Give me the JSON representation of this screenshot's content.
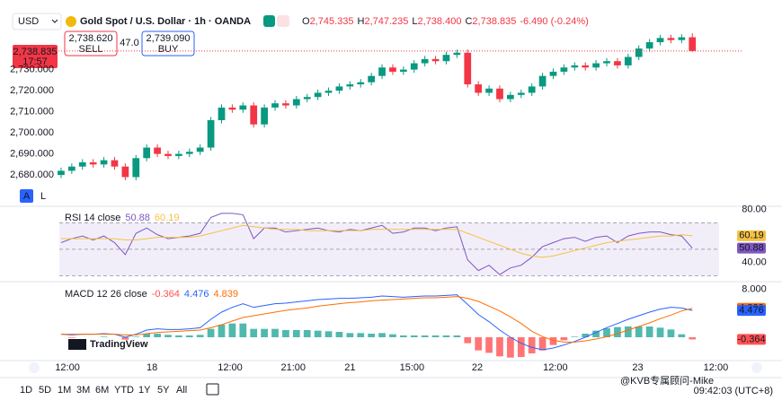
{
  "header": {
    "currency": "USD",
    "symbol": "Gold Spot / U.S. Dollar · 1h · OANDA",
    "ohlc": [
      {
        "key": "O",
        "value": "2,745.335"
      },
      {
        "key": "H",
        "value": "2,747.235"
      },
      {
        "key": "L",
        "value": "2,738.400"
      },
      {
        "key": "C",
        "value": "2,738.835"
      }
    ],
    "change": "-6.490 (-0.24%)"
  },
  "trade": {
    "sell_price": "2,738.620",
    "sell": "SELL",
    "spread": "47.0",
    "buy_price": "2,739.090",
    "buy": "BUY"
  },
  "price_tag": {
    "price": "2,738.835",
    "time": "17:57"
  },
  "scale_buttons": [
    "A",
    "L"
  ],
  "logo": "TradingView",
  "toolbar": {
    "ranges": [
      "1D",
      "5D",
      "1M",
      "3M",
      "6M",
      "YTD",
      "1Y",
      "5Y",
      "All"
    ],
    "time": "09:42:03 (UTC+8)",
    "watermark": "@KVB专属顾问-Mike"
  },
  "chart_data": [
    {
      "type": "candlestick",
      "up_color": "#089981",
      "down_color": "#f23645",
      "xlim": [
        -0.5,
        61.5
      ],
      "xticks": [
        {
          "value": 0.6,
          "label": "12:00"
        },
        {
          "value": 8.5,
          "label": "18"
        },
        {
          "value": 15.8,
          "label": "12:00"
        },
        {
          "value": 21.7,
          "label": "21:00"
        },
        {
          "value": 27,
          "label": "21"
        },
        {
          "value": 32.8,
          "label": "15:00"
        },
        {
          "value": 38.9,
          "label": "22"
        },
        {
          "value": 46.2,
          "label": "12:00"
        },
        {
          "value": 53.9,
          "label": "23"
        },
        {
          "value": 61.2,
          "label": "12:00"
        }
      ],
      "ylim": [
        2666,
        2746
      ],
      "yticks": [
        {
          "value": 2680,
          "label": "2,680.000"
        },
        {
          "value": 2690,
          "label": "2,690.000"
        },
        {
          "value": 2700,
          "label": "2,700.000"
        },
        {
          "value": 2710,
          "label": "2,710.000"
        },
        {
          "value": 2720,
          "label": "2,720.000"
        },
        {
          "value": 2730,
          "label": "2,730.000"
        }
      ],
      "open": [
        2680,
        2682,
        2684,
        2686,
        2685,
        2687,
        2684,
        2679,
        2688,
        2693,
        2690,
        2689,
        2690,
        2691,
        2693,
        2706,
        2712,
        2711,
        2713,
        2704,
        2712,
        2714,
        2713,
        2716,
        2717,
        2719,
        2720,
        2722,
        2723,
        2724,
        2727,
        2731,
        2729,
        2730,
        2733,
        2735,
        2734,
        2737,
        2738,
        2723,
        2719,
        2721,
        2716,
        2718,
        2719,
        2722,
        2727,
        2729,
        2731,
        2732,
        2731,
        2733,
        2734,
        2732,
        2736,
        2740,
        2743,
        2745,
        2744,
        2745.335
      ],
      "high": [
        2683.5,
        2685.5,
        2687.5,
        2687.5,
        2688.5,
        2688.5,
        2685.5,
        2689.5,
        2694.5,
        2694.5,
        2691.5,
        2691.5,
        2692.5,
        2694.5,
        2707.5,
        2713.5,
        2713.5,
        2714.5,
        2714.5,
        2713.5,
        2715.5,
        2715.5,
        2717.5,
        2718.5,
        2720.5,
        2721.5,
        2723.5,
        2724.5,
        2725.5,
        2728.5,
        2732.5,
        2732.5,
        2731.5,
        2734.5,
        2736.5,
        2736.5,
        2738.5,
        2739.5,
        2739.5,
        2724.5,
        2722.5,
        2722.5,
        2719.5,
        2720.5,
        2723.5,
        2728.5,
        2730.5,
        2732.5,
        2733.5,
        2733.5,
        2734.5,
        2735.5,
        2735.5,
        2737.5,
        2741.5,
        2744.5,
        2746.5,
        2746.5,
        2746.8,
        2747.235
      ],
      "low": [
        2678.5,
        2680.5,
        2682.5,
        2683.5,
        2683.5,
        2682.5,
        2677.5,
        2677.5,
        2686.5,
        2688.5,
        2687.5,
        2687.5,
        2688.5,
        2689.5,
        2691.5,
        2704.5,
        2709.5,
        2709.5,
        2702.5,
        2702.5,
        2710.5,
        2711.5,
        2711.5,
        2714.5,
        2715.5,
        2717.5,
        2718.5,
        2720.5,
        2721.5,
        2722.5,
        2725.5,
        2727.5,
        2727.5,
        2728.5,
        2731.5,
        2732.5,
        2732.5,
        2735.5,
        2721.5,
        2717.5,
        2717.5,
        2714.5,
        2714.5,
        2716.5,
        2717.5,
        2720.5,
        2725.5,
        2727.5,
        2729.5,
        2729.5,
        2729.5,
        2731.5,
        2730.5,
        2730.5,
        2734.5,
        2738.5,
        2741.5,
        2742.5,
        2742.5,
        2738.4
      ],
      "close": [
        2682,
        2684,
        2686,
        2685,
        2687,
        2684,
        2679,
        2688,
        2693,
        2690,
        2689,
        2690,
        2691,
        2693,
        2706,
        2712,
        2711,
        2713,
        2704,
        2712,
        2714,
        2713,
        2716,
        2717,
        2719,
        2720,
        2722,
        2723,
        2724,
        2727,
        2731,
        2729,
        2730,
        2733,
        2735,
        2734,
        2737,
        2738,
        2723,
        2719,
        2721,
        2716,
        2718,
        2719,
        2722,
        2727,
        2729,
        2731,
        2732,
        2731,
        2733,
        2734,
        2732,
        2736,
        2740,
        2743,
        2745,
        2744,
        2745.325,
        2738.835
      ]
    },
    {
      "type": "line",
      "label": "RSI 14 close",
      "ylim": [
        27,
        81
      ],
      "yticks": [
        {
          "value": 80,
          "label": "80.00"
        },
        {
          "value": 40,
          "label": "40.00"
        }
      ],
      "levels": [
        70,
        50,
        30
      ],
      "series": [
        {
          "color": "#7e57c2",
          "values": [
            55,
            58,
            60,
            57,
            60,
            55,
            46,
            62,
            66,
            61,
            58,
            59,
            60,
            62,
            74,
            77,
            77,
            76,
            58,
            66,
            66,
            63,
            64,
            65,
            66,
            64,
            63,
            65,
            64,
            66,
            68,
            62,
            63,
            66,
            66,
            64,
            66,
            67,
            42,
            34,
            38,
            31,
            36,
            38,
            44,
            52,
            55,
            58,
            59,
            56,
            59,
            60,
            55,
            60,
            62,
            63,
            63,
            61,
            60,
            50.88
          ]
        },
        {
          "color": "#f5c242",
          "values": [
            58,
            58,
            58,
            58,
            58,
            58,
            57,
            57,
            58,
            59,
            59,
            59,
            59,
            60,
            62,
            64,
            66,
            68,
            67,
            66,
            65,
            65,
            65,
            64,
            64,
            64,
            64,
            64,
            64,
            65,
            65,
            65,
            65,
            65,
            65,
            65,
            65,
            65,
            62,
            59,
            56,
            53,
            50,
            47,
            45,
            44,
            45,
            47,
            49,
            51,
            53,
            55,
            56,
            57,
            58,
            59,
            60,
            60,
            61,
            60.19
          ]
        }
      ]
    },
    {
      "type": "macd",
      "label": "MACD 12 26 close",
      "ylim": [
        -3.6,
        9
      ],
      "yticks": [
        {
          "value": 8,
          "label": "8.000"
        }
      ],
      "series": [
        {
          "kind": "histogram",
          "color": "#26a69a",
          "down_color": "#ff5252",
          "values": [
            0,
            -0.1,
            0,
            0,
            0.1,
            0,
            -0.4,
            0.1,
            0.6,
            0.6,
            0.4,
            0.3,
            0.3,
            0.4,
            1.4,
            2.1,
            2.3,
            2.3,
            1.4,
            1.4,
            1.4,
            1.2,
            1.2,
            1.2,
            1.1,
            1,
            0.9,
            0.7,
            0.7,
            0.6,
            0.7,
            0.5,
            0.3,
            0.3,
            0.3,
            0.3,
            0.3,
            0.3,
            -1,
            -2.2,
            -2.6,
            -3.2,
            -3.4,
            -3.3,
            -2.7,
            -2.2,
            -1.3,
            -0.5,
            0.1,
            0.6,
            1.1,
            1.5,
            1.7,
            1.8,
            1.8,
            1.8,
            1.6,
            1.3,
            0.5,
            -0.364
          ]
        },
        {
          "kind": "line",
          "color": "#2962ff",
          "values": [
            0.5,
            0.4,
            0.5,
            0.5,
            0.6,
            0.5,
            0,
            0.5,
            1.2,
            1.4,
            1.3,
            1.3,
            1.4,
            1.6,
            3,
            4.2,
            5,
            5.6,
            5,
            5.3,
            5.6,
            5.7,
            5.9,
            6.1,
            6.3,
            6.4,
            6.5,
            6.5,
            6.6,
            6.7,
            6.9,
            6.8,
            6.7,
            6.8,
            6.9,
            6.9,
            7,
            7.1,
            5.5,
            3.8,
            2.6,
            1.2,
            0,
            -1,
            -1.7,
            -2.1,
            -1.8,
            -1.3,
            -0.7,
            0,
            0.8,
            1.6,
            2.3,
            3,
            3.6,
            4.2,
            4.7,
            5,
            4.9,
            4.476
          ]
        },
        {
          "kind": "line",
          "color": "#ff6d00",
          "values": [
            0.5,
            0.5,
            0.5,
            0.5,
            0.5,
            0.5,
            0.4,
            0.4,
            0.6,
            0.8,
            0.9,
            1,
            1.1,
            1.2,
            1.6,
            2.1,
            2.7,
            3.3,
            3.6,
            3.9,
            4.2,
            4.5,
            4.7,
            4.9,
            5.2,
            5.4,
            5.6,
            5.8,
            5.9,
            6.1,
            6.2,
            6.3,
            6.4,
            6.5,
            6.6,
            6.6,
            6.7,
            6.8,
            6.5,
            6,
            5.2,
            4.4,
            3.4,
            2.3,
            1,
            0.1,
            -0.5,
            -0.8,
            -0.8,
            -0.6,
            -0.3,
            0.1,
            0.6,
            1.2,
            1.8,
            2.4,
            3.1,
            3.7,
            4.4,
            4.839
          ]
        }
      ]
    }
  ]
}
